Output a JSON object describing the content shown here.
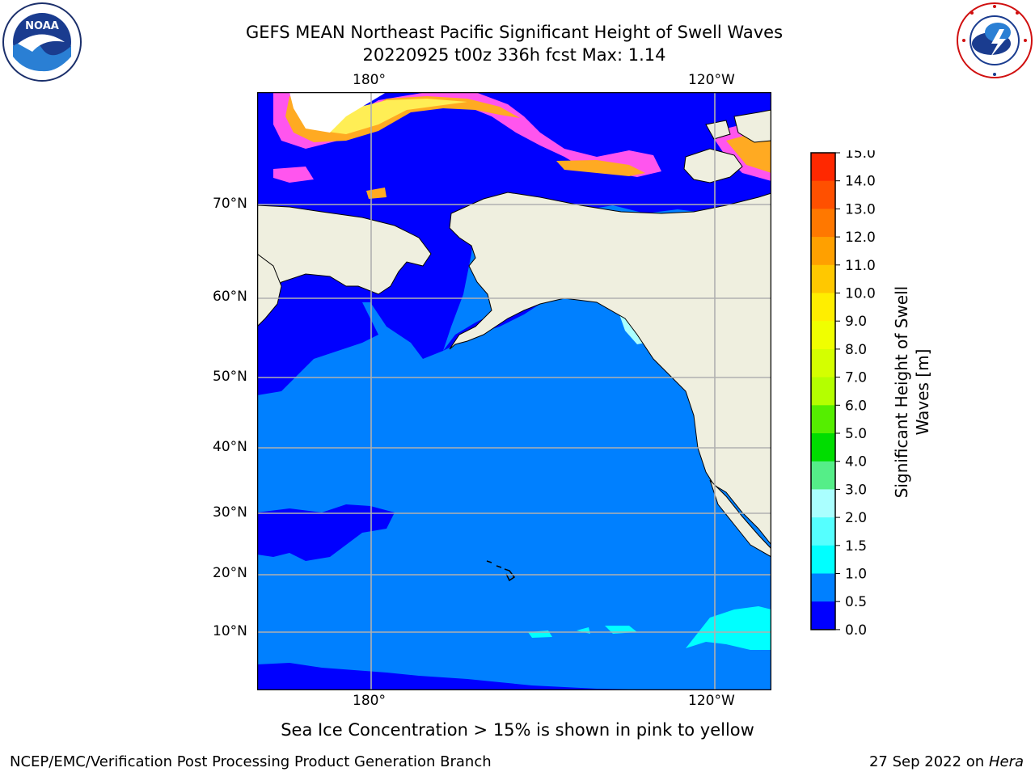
{
  "header": {
    "title_line1": "GEFS MEAN Northeast Pacific Significant Height of Swell Waves",
    "title_line2": "20220925 t00z 336h fcst   Max: 1.14"
  },
  "logos": {
    "left": {
      "icon": "noaa-logo",
      "text": "NOAA",
      "ring_text": "NATIONAL OCEANIC AND ATMOSPHERIC ADMINISTRATION · U.S. DEPARTMENT OF COMMERCE"
    },
    "right": {
      "icon": "nws-logo",
      "ring_text": "NATIONAL WEATHER SERVICE"
    }
  },
  "map": {
    "lon_labels": [
      "180°",
      "120°W"
    ],
    "lat_labels": [
      "70°N",
      "60°N",
      "50°N",
      "40°N",
      "30°N",
      "20°N",
      "10°N"
    ],
    "colors": {
      "ocean_low": "#0000ff",
      "ocean_main": "#0080ff",
      "cyan_high": "#00ffff",
      "land": "#efefdf",
      "grid": "#b0b0b0",
      "ice_pink": "#ff55ee",
      "ice_orange": "#ffaa22",
      "ice_yellow": "#ffee55"
    }
  },
  "colorbar": {
    "label_line1": "Significant Height of Swell",
    "label_line2": "Waves [m]",
    "ticks": [
      "15.0",
      "14.0",
      "13.0",
      "12.0",
      "11.0",
      "10.0",
      "9.0",
      "8.0",
      "7.0",
      "6.0",
      "5.0",
      "4.0",
      "3.0",
      "2.0",
      "1.5",
      "1.0",
      "0.5",
      "0.0"
    ],
    "colors": [
      "#ff0000",
      "#ff2800",
      "#ff5000",
      "#ff7800",
      "#ffa000",
      "#ffc800",
      "#ffee00",
      "#f0ff00",
      "#d4ff00",
      "#b4ff00",
      "#55ee00",
      "#00dd00",
      "#55ee88",
      "#aaffff",
      "#55ffff",
      "#00ffff",
      "#0080ff",
      "#0000ff"
    ]
  },
  "caption": "Sea Ice Concentration > 15% is shown in pink to yellow",
  "footer": {
    "left": "NCEP/EMC/Verification Post Processing Product Generation Branch",
    "date": "27 Sep 2022 on",
    "machine": "Hera"
  }
}
